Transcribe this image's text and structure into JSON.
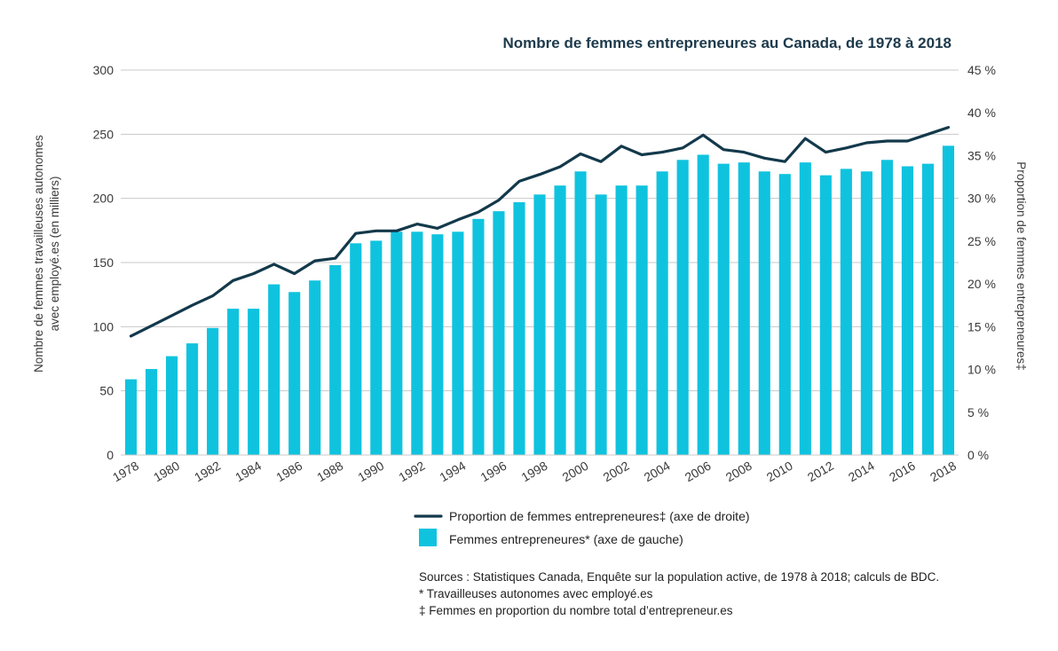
{
  "colors": {
    "bars": "#0fc3df",
    "line": "#13394b",
    "grid": "#c8c8c8",
    "text": "#3a3a3a",
    "title": "#1d3a4c"
  },
  "chart_data": {
    "type": "bar",
    "title": "Nombre de femmes entrepreneures au Canada, de 1978 à 2018",
    "ylabel": [
      "Nombre de femmes travailleuses autonomes",
      "avec employé.es (en milliers)"
    ],
    "y2label": "Proportion de femmes entrepreneures‡",
    "ylim": [
      0,
      300
    ],
    "y2lim": [
      0,
      45
    ],
    "yticks": [
      "0",
      "50",
      "100",
      "150",
      "200",
      "250",
      "300"
    ],
    "y2ticks": [
      "0 %",
      "5 %",
      "10 %",
      "15 %",
      "20 %",
      "25 %",
      "30 %",
      "35 %",
      "40 %",
      "45 %"
    ],
    "xtick_labels": [
      "1978",
      "1980",
      "1982",
      "1984",
      "1986",
      "1988",
      "1990",
      "1992",
      "1994",
      "1996",
      "1998",
      "2000",
      "2002",
      "2004",
      "2006",
      "2008",
      "2010",
      "2012",
      "2014",
      "2016",
      "2018"
    ],
    "grid": true,
    "legend_position": "bottom",
    "categories": [
      "1978",
      "1979",
      "1980",
      "1981",
      "1982",
      "1983",
      "1984",
      "1985",
      "1986",
      "1987",
      "1988",
      "1989",
      "1990",
      "1991",
      "1992",
      "1993",
      "1994",
      "1995",
      "1996",
      "1997",
      "1998",
      "1999",
      "2000",
      "2001",
      "2002",
      "2003",
      "2004",
      "2005",
      "2006",
      "2007",
      "2008",
      "2009",
      "2010",
      "2011",
      "2012",
      "2013",
      "2014",
      "2015",
      "2016",
      "2017",
      "2018"
    ],
    "series": [
      {
        "name": "Femmes entrepreneures* (axe de gauche)",
        "type": "bar",
        "axis": "left",
        "values": [
          59,
          67,
          77,
          87,
          99,
          114,
          114,
          133,
          127,
          136,
          148,
          165,
          167,
          174,
          174,
          172,
          174,
          184,
          190,
          197,
          203,
          210,
          221,
          203,
          210,
          210,
          221,
          230,
          234,
          227,
          228,
          221,
          219,
          228,
          218,
          223,
          221,
          230,
          225,
          227,
          241
        ]
      },
      {
        "name": "Proportion de femmes entrepreneures‡ (axe de droite)",
        "type": "line",
        "axis": "right",
        "values": [
          13.9,
          15.1,
          16.3,
          17.5,
          18.6,
          20.4,
          21.2,
          22.3,
          21.2,
          22.7,
          23.0,
          25.9,
          26.2,
          26.2,
          27.0,
          26.5,
          27.5,
          28.4,
          29.8,
          32.0,
          32.8,
          33.7,
          35.2,
          34.3,
          36.1,
          35.1,
          35.4,
          35.9,
          37.4,
          35.7,
          35.4,
          34.7,
          34.3,
          37.0,
          35.4,
          35.9,
          36.5,
          36.7,
          36.7,
          37.5,
          38.3
        ]
      }
    ]
  },
  "legend": {
    "line_label": "Proportion de femmes entrepreneures‡ (axe de droite)",
    "bar_label": "Femmes entrepreneures* (axe de gauche)"
  },
  "notes": {
    "sources": "Sources : Statistiques Canada, Enquête sur la population active, de 1978 à 2018; calculs de BDC.",
    "footnote_star": "* Travailleuses autonomes avec employé.es",
    "footnote_dagger": "‡ Femmes en proportion du nombre total d’entrepreneur.es"
  }
}
